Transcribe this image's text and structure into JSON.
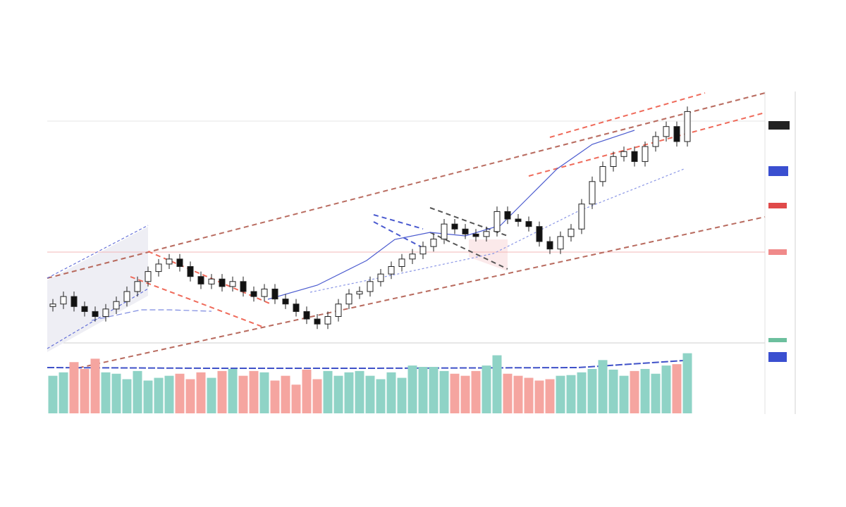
{
  "chart_data": {
    "type": "candlestick",
    "open": [
      14,
      15,
      18,
      14,
      12,
      10,
      13,
      16,
      20,
      24,
      28,
      31,
      33,
      30,
      26,
      23,
      25,
      22,
      24,
      20,
      18,
      21,
      17,
      15,
      12,
      9,
      7,
      10,
      15,
      19,
      20,
      24,
      27,
      30,
      33,
      35,
      38,
      41,
      47,
      45,
      43,
      42,
      44,
      52,
      49,
      48,
      46,
      40,
      37,
      42,
      45,
      55,
      64,
      70,
      74,
      76,
      72,
      78,
      82,
      86,
      80
    ],
    "high": [
      17,
      20,
      20,
      16,
      14,
      15,
      18,
      22,
      26,
      30,
      33,
      35,
      35,
      32,
      28,
      27,
      27,
      26,
      26,
      22,
      23,
      23,
      19,
      17,
      14,
      11,
      12,
      17,
      21,
      22,
      26,
      29,
      32,
      35,
      37,
      40,
      43,
      49,
      49,
      47,
      45,
      46,
      54,
      54,
      51,
      50,
      48,
      42,
      44,
      47,
      57,
      66,
      72,
      76,
      78,
      78,
      80,
      84,
      88,
      88,
      94
    ],
    "low": [
      12,
      13,
      12,
      10,
      8,
      8,
      11,
      14,
      18,
      22,
      26,
      29,
      28,
      24,
      21,
      21,
      20,
      20,
      18,
      16,
      16,
      15,
      13,
      10,
      7,
      5,
      5,
      8,
      13,
      17,
      18,
      22,
      25,
      28,
      31,
      33,
      36,
      39,
      43,
      41,
      40,
      40,
      42,
      47,
      46,
      44,
      38,
      35,
      35,
      40,
      43,
      53,
      62,
      68,
      72,
      70,
      70,
      76,
      80,
      78,
      78
    ],
    "close": [
      15,
      18,
      14,
      12,
      10,
      13,
      16,
      20,
      24,
      28,
      31,
      33,
      30,
      26,
      23,
      25,
      22,
      24,
      20,
      18,
      21,
      17,
      15,
      12,
      9,
      7,
      10,
      15,
      19,
      20,
      24,
      27,
      30,
      33,
      35,
      38,
      41,
      47,
      45,
      43,
      42,
      44,
      52,
      49,
      48,
      46,
      40,
      37,
      42,
      45,
      55,
      64,
      70,
      74,
      76,
      72,
      78,
      82,
      86,
      80,
      92
    ],
    "ylim": [
      0,
      100
    ],
    "volume": [
      55,
      60,
      75,
      65,
      80,
      60,
      58,
      50,
      62,
      48,
      52,
      55,
      58,
      50,
      60,
      52,
      62,
      65,
      55,
      62,
      60,
      48,
      55,
      42,
      64,
      50,
      62,
      55,
      60,
      62,
      55,
      50,
      60,
      52,
      70,
      68,
      68,
      62,
      58,
      55,
      62,
      70,
      85,
      58,
      55,
      52,
      48,
      50,
      55,
      56,
      60,
      65,
      78,
      64,
      55,
      62,
      65,
      58,
      70,
      72,
      88
    ],
    "volume_ylim": [
      0,
      100
    ],
    "up_color": "#8fd3c6",
    "down_color": "#f5a5a0"
  }
}
